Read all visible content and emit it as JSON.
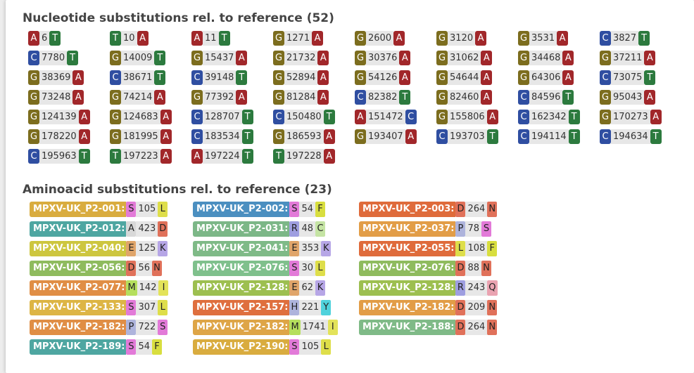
{
  "nucleotide": {
    "title": "Nucleotide substitutions rel. to reference (52)",
    "items": [
      {
        "ref": "A",
        "pos": "6",
        "alt": "T"
      },
      {
        "ref": "T",
        "pos": "10",
        "alt": "A"
      },
      {
        "ref": "A",
        "pos": "11",
        "alt": "T"
      },
      {
        "ref": "G",
        "pos": "1271",
        "alt": "A"
      },
      {
        "ref": "G",
        "pos": "2600",
        "alt": "A"
      },
      {
        "ref": "G",
        "pos": "3120",
        "alt": "A"
      },
      {
        "ref": "G",
        "pos": "3531",
        "alt": "A"
      },
      {
        "ref": "C",
        "pos": "3827",
        "alt": "T"
      },
      {
        "ref": "C",
        "pos": "7780",
        "alt": "T"
      },
      {
        "ref": "G",
        "pos": "14009",
        "alt": "T"
      },
      {
        "ref": "G",
        "pos": "15437",
        "alt": "A"
      },
      {
        "ref": "G",
        "pos": "21732",
        "alt": "A"
      },
      {
        "ref": "G",
        "pos": "30376",
        "alt": "A"
      },
      {
        "ref": "G",
        "pos": "31062",
        "alt": "A"
      },
      {
        "ref": "G",
        "pos": "34468",
        "alt": "A"
      },
      {
        "ref": "G",
        "pos": "37211",
        "alt": "A"
      },
      {
        "ref": "G",
        "pos": "38369",
        "alt": "A"
      },
      {
        "ref": "C",
        "pos": "38671",
        "alt": "T"
      },
      {
        "ref": "C",
        "pos": "39148",
        "alt": "T"
      },
      {
        "ref": "G",
        "pos": "52894",
        "alt": "A"
      },
      {
        "ref": "G",
        "pos": "54126",
        "alt": "A"
      },
      {
        "ref": "G",
        "pos": "54644",
        "alt": "A"
      },
      {
        "ref": "G",
        "pos": "64306",
        "alt": "A"
      },
      {
        "ref": "C",
        "pos": "73075",
        "alt": "T"
      },
      {
        "ref": "G",
        "pos": "73248",
        "alt": "A"
      },
      {
        "ref": "G",
        "pos": "74214",
        "alt": "A"
      },
      {
        "ref": "G",
        "pos": "77392",
        "alt": "A"
      },
      {
        "ref": "G",
        "pos": "81284",
        "alt": "A"
      },
      {
        "ref": "C",
        "pos": "82382",
        "alt": "T"
      },
      {
        "ref": "G",
        "pos": "82460",
        "alt": "A"
      },
      {
        "ref": "C",
        "pos": "84596",
        "alt": "T"
      },
      {
        "ref": "G",
        "pos": "95043",
        "alt": "A"
      },
      {
        "ref": "G",
        "pos": "124139",
        "alt": "A"
      },
      {
        "ref": "G",
        "pos": "124683",
        "alt": "A"
      },
      {
        "ref": "C",
        "pos": "128707",
        "alt": "T"
      },
      {
        "ref": "C",
        "pos": "150480",
        "alt": "T"
      },
      {
        "ref": "A",
        "pos": "151472",
        "alt": "C"
      },
      {
        "ref": "G",
        "pos": "155806",
        "alt": "A"
      },
      {
        "ref": "C",
        "pos": "162342",
        "alt": "T"
      },
      {
        "ref": "G",
        "pos": "170273",
        "alt": "A"
      },
      {
        "ref": "G",
        "pos": "178220",
        "alt": "A"
      },
      {
        "ref": "G",
        "pos": "181995",
        "alt": "A"
      },
      {
        "ref": "C",
        "pos": "183534",
        "alt": "T"
      },
      {
        "ref": "G",
        "pos": "186593",
        "alt": "A"
      },
      {
        "ref": "G",
        "pos": "193407",
        "alt": "A"
      },
      {
        "ref": "C",
        "pos": "193703",
        "alt": "T"
      },
      {
        "ref": "C",
        "pos": "194114",
        "alt": "T"
      },
      {
        "ref": "C",
        "pos": "194634",
        "alt": "T"
      },
      {
        "ref": "C",
        "pos": "195963",
        "alt": "T"
      },
      {
        "ref": "T",
        "pos": "197223",
        "alt": "A"
      },
      {
        "ref": "A",
        "pos": "197224",
        "alt": "T"
      },
      {
        "ref": "T",
        "pos": "197228",
        "alt": "A"
      }
    ]
  },
  "aminoacid": {
    "title": "Aminoacid substitutions rel. to reference (23)",
    "items": [
      {
        "gene": "MPXV-UK_P2-001:",
        "ref": "S",
        "pos": "105",
        "alt": "L"
      },
      {
        "gene": "MPXV-UK_P2-002:",
        "ref": "S",
        "pos": "54",
        "alt": "F"
      },
      {
        "gene": "MPXV-UK_P2-003:",
        "ref": "D",
        "pos": "264",
        "alt": "N"
      },
      {
        "gene": "MPXV-UK_P2-012:",
        "ref": "A",
        "pos": "423",
        "alt": "D"
      },
      {
        "gene": "MPXV-UK_P2-031:",
        "ref": "R",
        "pos": "48",
        "alt": "C"
      },
      {
        "gene": "MPXV-UK_P2-037:",
        "ref": "P",
        "pos": "78",
        "alt": "S"
      },
      {
        "gene": "MPXV-UK_P2-040:",
        "ref": "E",
        "pos": "125",
        "alt": "K"
      },
      {
        "gene": "MPXV-UK_P2-041:",
        "ref": "E",
        "pos": "353",
        "alt": "K"
      },
      {
        "gene": "MPXV-UK_P2-055:",
        "ref": "L",
        "pos": "108",
        "alt": "F"
      },
      {
        "gene": "MPXV-UK_P2-056:",
        "ref": "D",
        "pos": "56",
        "alt": "N"
      },
      {
        "gene": "MPXV-UK_P2-076:",
        "ref": "S",
        "pos": "30",
        "alt": "L"
      },
      {
        "gene": "MPXV-UK_P2-076:",
        "ref": "D",
        "pos": "88",
        "alt": "N"
      },
      {
        "gene": "MPXV-UK_P2-077:",
        "ref": "M",
        "pos": "142",
        "alt": "I"
      },
      {
        "gene": "MPXV-UK_P2-128:",
        "ref": "E",
        "pos": "62",
        "alt": "K"
      },
      {
        "gene": "MPXV-UK_P2-128:",
        "ref": "R",
        "pos": "243",
        "alt": "Q"
      },
      {
        "gene": "MPXV-UK_P2-133:",
        "ref": "S",
        "pos": "307",
        "alt": "L"
      },
      {
        "gene": "MPXV-UK_P2-157:",
        "ref": "H",
        "pos": "221",
        "alt": "Y"
      },
      {
        "gene": "MPXV-UK_P2-182:",
        "ref": "D",
        "pos": "209",
        "alt": "N"
      },
      {
        "gene": "MPXV-UK_P2-182:",
        "ref": "P",
        "pos": "722",
        "alt": "S"
      },
      {
        "gene": "MPXV-UK_P2-182:",
        "ref": "M",
        "pos": "1741",
        "alt": "I"
      },
      {
        "gene": "MPXV-UK_P2-188:",
        "ref": "D",
        "pos": "264",
        "alt": "N"
      },
      {
        "gene": "MPXV-UK_P2-189:",
        "ref": "S",
        "pos": "54",
        "alt": "F"
      },
      {
        "gene": "MPXV-UK_P2-190:",
        "ref": "S",
        "pos": "105",
        "alt": "L"
      }
    ]
  },
  "colors": {
    "nucleotide": {
      "A": "#a1272a",
      "T": "#2c7a3e",
      "G": "#7c6d1e",
      "C": "#2f4ea1"
    },
    "aminoacid": {
      "S": "#e27ad8",
      "L": "#dede4a",
      "F": "#d8de3f",
      "D": "#e0715a",
      "N": "#e0715a",
      "A": "#d8d8d8",
      "R": "#9e9ee0",
      "C": "#c5e4a4",
      "P": "#aeb4dc",
      "E": "#e0a56a",
      "K": "#b6a6e6",
      "M": "#b5df5d",
      "I": "#e3e35a",
      "H": "#aeb4dc",
      "Y": "#4fd2dc",
      "Q": "#eaa3b1"
    },
    "gene": [
      "#d9ac3f",
      "#4b8fc0",
      "#df6b3b",
      "#4ea6a1",
      "#7cb787",
      "#e29d47",
      "#cdc63f",
      "#7fba87",
      "#df6b3b",
      "#8fbb5e",
      "#7fc08c",
      "#8fbb5e",
      "#e08e45",
      "#9dbf50",
      "#9dbf50",
      "#ddb545",
      "#df6f3e",
      "#e29d47",
      "#e08e45",
      "#dea547",
      "#7fba87",
      "#4ea6a1",
      "#d9ac3f"
    ]
  }
}
